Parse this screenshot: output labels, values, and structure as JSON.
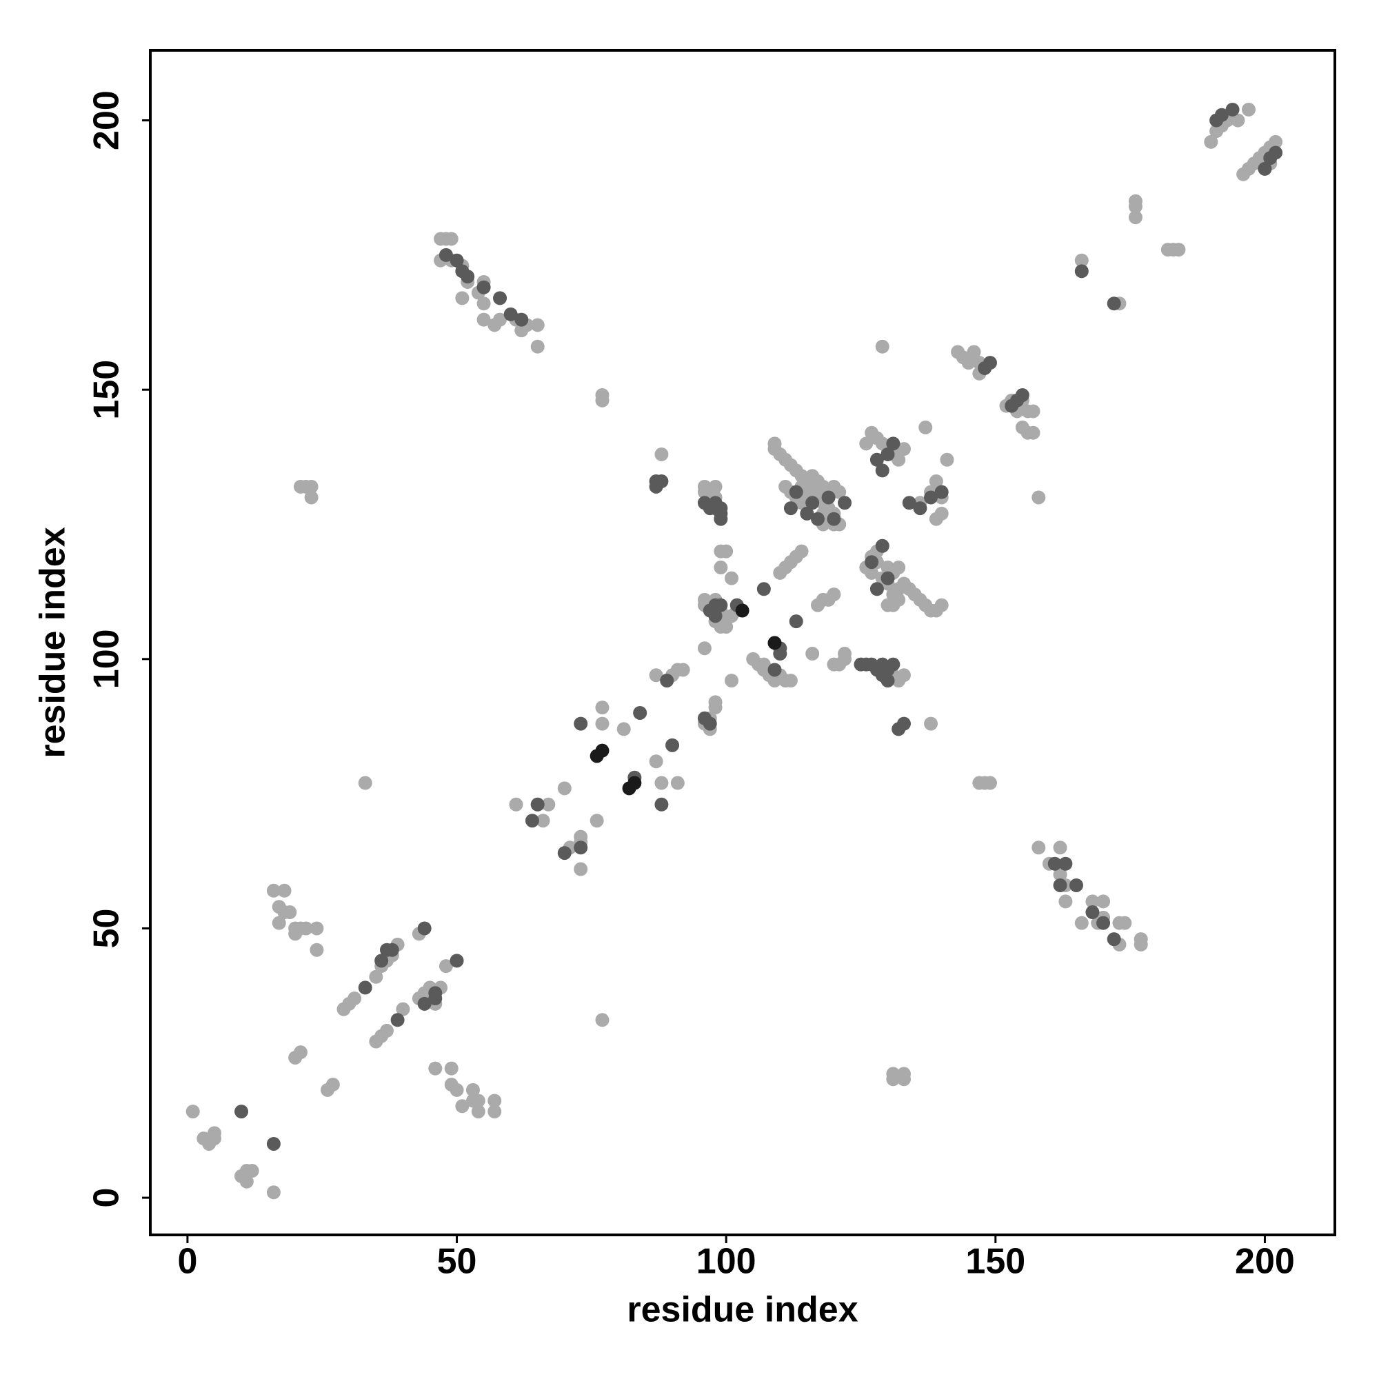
{
  "chart_data": {
    "type": "scatter",
    "xlabel": "residue index",
    "ylabel": "residue index",
    "xlim": [
      -6.9,
      213
    ],
    "ylim": [
      -6.9,
      213
    ],
    "xticks": [
      0,
      50,
      100,
      150,
      200
    ],
    "yticks": [
      0,
      50,
      100,
      150,
      200
    ],
    "series": [
      {
        "color": "#aaaaaa",
        "x": [
          1,
          3,
          4,
          5,
          5,
          10,
          11,
          11,
          12,
          16,
          16,
          17,
          18,
          18,
          17,
          19,
          20,
          20,
          21,
          22,
          24,
          24,
          20,
          21,
          26,
          27,
          29,
          30,
          31,
          35,
          36,
          37,
          35,
          36,
          37,
          38,
          39,
          40,
          43,
          43,
          44,
          45,
          46,
          46,
          47,
          48,
          49,
          49,
          50,
          51,
          53,
          53,
          54,
          54,
          57,
          57,
          33,
          77,
          21,
          22,
          23,
          23,
          47,
          48,
          49,
          47,
          49,
          51,
          52,
          51,
          54,
          55,
          55,
          55,
          57,
          58,
          61,
          62,
          63,
          65,
          65,
          158,
          160,
          162,
          162,
          163,
          163,
          166,
          168,
          169,
          170,
          170,
          173,
          174,
          173,
          177,
          177,
          61,
          65,
          66,
          67,
          70,
          71,
          73,
          73,
          73,
          76,
          77,
          77,
          77,
          77,
          81,
          87,
          88,
          88,
          91,
          92,
          90,
          91,
          89,
          87,
          96,
          96,
          96,
          96,
          96,
          97,
          98,
          98,
          96,
          97,
          97,
          98,
          98,
          98,
          99,
          99,
          98,
          99,
          99,
          100,
          101,
          101,
          101,
          102,
          102,
          100,
          99,
          105,
          106,
          107,
          107,
          108,
          109,
          110,
          111,
          112,
          110,
          111,
          112,
          113,
          114,
          116,
          117,
          118,
          119,
          120,
          120,
          121,
          122,
          122,
          109,
          110,
          109,
          111,
          112,
          113,
          114,
          115,
          111,
          112,
          113,
          114,
          115,
          116,
          117,
          118,
          119,
          120,
          119,
          118,
          120,
          121,
          117,
          118,
          120,
          121,
          114,
          116,
          118,
          126,
          127,
          128,
          129,
          130,
          131,
          132,
          133,
          126,
          127,
          127,
          128,
          128,
          129,
          129,
          130,
          130,
          131,
          132,
          133,
          134,
          135,
          136,
          137,
          138,
          139,
          140,
          131,
          132,
          130,
          131,
          132,
          133,
          131,
          132,
          133,
          133,
          131,
          131,
          129,
          137,
          138,
          140,
          141,
          138,
          139,
          140,
          136,
          139,
          131,
          143,
          144,
          145,
          146,
          147,
          147,
          148,
          147,
          148,
          149,
          152,
          153,
          154,
          155,
          156,
          157,
          156,
          157,
          155,
          158,
          166,
          176,
          176,
          176,
          182,
          183,
          184,
          173,
          190,
          191,
          192,
          193,
          195,
          197,
          196,
          197,
          198,
          199,
          200,
          201,
          202,
          201
        ],
        "y": [
          16,
          11,
          10,
          11,
          12,
          4,
          3,
          5,
          5,
          1,
          57,
          54,
          57,
          53,
          51,
          53,
          50,
          49,
          50,
          50,
          50,
          46,
          26,
          27,
          20,
          21,
          35,
          36,
          37,
          29,
          30,
          31,
          41,
          43,
          44,
          45,
          47,
          35,
          37,
          49,
          38,
          39,
          36,
          24,
          39,
          43,
          24,
          21,
          20,
          17,
          18,
          20,
          16,
          18,
          18,
          16,
          77,
          33,
          132,
          132,
          130,
          132,
          178,
          178,
          178,
          174,
          174,
          173,
          170,
          167,
          168,
          166,
          170,
          163,
          162,
          163,
          163,
          161,
          162,
          162,
          158,
          65,
          62,
          65,
          60,
          58,
          55,
          51,
          55,
          51,
          55,
          52,
          51,
          51,
          47,
          48,
          47,
          73,
          73,
          70,
          73,
          76,
          65,
          66,
          67,
          61,
          70,
          91,
          88,
          148,
          149,
          87,
          81,
          77,
          138,
          77,
          98,
          97,
          98,
          96,
          97,
          102,
          111,
          110,
          132,
          131,
          130,
          132,
          130,
          88,
          87,
          89,
          91,
          92,
          111,
          109,
          108,
          107,
          117,
          120,
          120,
          115,
          96,
          108,
          110,
          109,
          106,
          106,
          100,
          99,
          99,
          98,
          97,
          96,
          97,
          96,
          96,
          116,
          117,
          118,
          119,
          120,
          101,
          110,
          111,
          111,
          112,
          99,
          99,
          101,
          100,
          139,
          138,
          140,
          137,
          136,
          135,
          134,
          133,
          132,
          131,
          130,
          129,
          130,
          131,
          130,
          129,
          128,
          127,
          126,
          125,
          125,
          125,
          133,
          132,
          132,
          131,
          132,
          134,
          127,
          140,
          142,
          141,
          140,
          139,
          138,
          137,
          139,
          117,
          116,
          119,
          118,
          120,
          121,
          115,
          117,
          114,
          112,
          113,
          114,
          113,
          112,
          111,
          110,
          109,
          109,
          110,
          116,
          117,
          110,
          110,
          111,
          97,
          97,
          96,
          23,
          22,
          23,
          22,
          158,
          143,
          88,
          127,
          137,
          131,
          133,
          130,
          129,
          126,
          139,
          157,
          156,
          155,
          157,
          155,
          153,
          154,
          77,
          77,
          77,
          147,
          148,
          146,
          143,
          142,
          142,
          146,
          146,
          148,
          130,
          174,
          184,
          185,
          182,
          176,
          176,
          176,
          166,
          196,
          198,
          199,
          200,
          200,
          202,
          190,
          191,
          192,
          193,
          194,
          195,
          196,
          192
        ]
      },
      {
        "color": "#5a5a5a",
        "x": [
          10,
          16,
          33,
          36,
          37,
          38,
          39,
          44,
          44,
          46,
          46,
          50,
          48,
          50,
          51,
          52,
          55,
          58,
          60,
          62,
          161,
          162,
          163,
          165,
          168,
          170,
          172,
          64,
          65,
          70,
          73,
          73,
          84,
          88,
          90,
          87,
          88,
          87,
          83,
          89,
          96,
          97,
          96,
          97,
          98,
          98,
          99,
          99,
          99,
          98,
          98,
          102,
          107,
          109,
          110,
          113,
          97,
          99,
          112,
          115,
          117,
          120,
          122,
          110,
          113,
          116,
          119,
          125,
          126,
          127,
          128,
          129,
          130,
          130,
          131,
          129,
          128,
          128,
          129,
          130,
          131,
          129,
          132,
          133,
          134,
          136,
          138,
          140,
          130,
          127,
          148,
          149,
          153,
          154,
          155,
          166,
          172,
          191,
          192,
          194,
          200,
          201,
          202
        ],
        "y": [
          16,
          10,
          39,
          44,
          46,
          46,
          33,
          36,
          50,
          38,
          37,
          44,
          175,
          174,
          172,
          171,
          169,
          167,
          164,
          163,
          62,
          58,
          62,
          58,
          53,
          51,
          48,
          70,
          73,
          64,
          65,
          88,
          90,
          73,
          84,
          132,
          133,
          133,
          78,
          96,
          89,
          88,
          129,
          128,
          128,
          129,
          128,
          127,
          126,
          110,
          108,
          110,
          113,
          98,
          102,
          107,
          109,
          110,
          128,
          127,
          126,
          126,
          129,
          101,
          131,
          129,
          130,
          99,
          99,
          99,
          98,
          99,
          98,
          96,
          99,
          97,
          113,
          137,
          135,
          138,
          140,
          121,
          87,
          88,
          129,
          128,
          130,
          131,
          115,
          118,
          154,
          155,
          147,
          148,
          149,
          172,
          166,
          200,
          201,
          202,
          191,
          193,
          194
        ]
      },
      {
        "color": "#1a1a1a",
        "x": [
          76,
          77,
          82,
          83,
          103,
          109
        ],
        "y": [
          82,
          83,
          76,
          77,
          109,
          103
        ]
      }
    ]
  }
}
